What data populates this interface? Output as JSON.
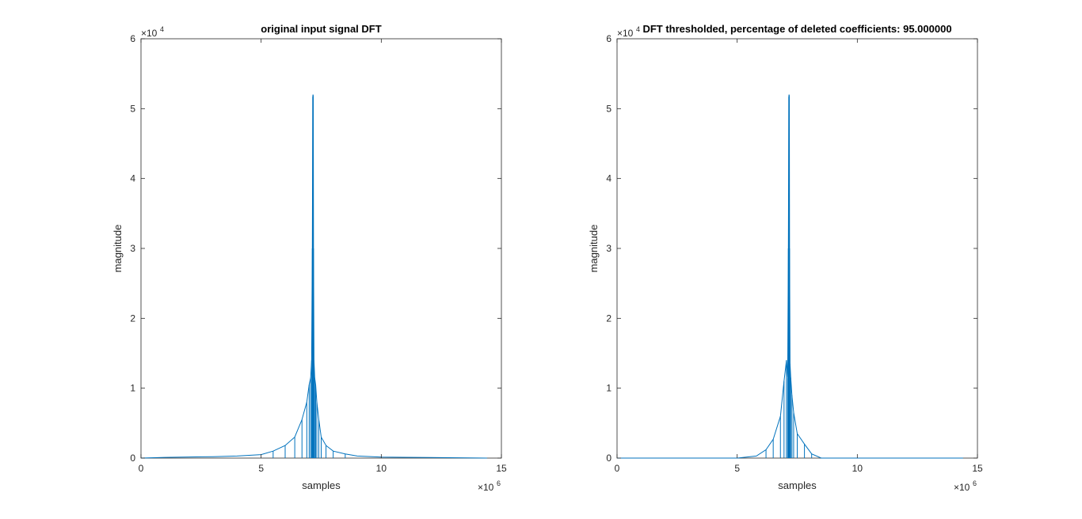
{
  "chart_data": [
    {
      "type": "line",
      "title": "original input signal DFT",
      "xlabel": "samples",
      "ylabel": "magnitude",
      "xlim": [
        0,
        15000000
      ],
      "ylim": [
        0,
        60000
      ],
      "xticks": [
        "0",
        "5",
        "10",
        "15"
      ],
      "yticks": [
        "0",
        "1",
        "2",
        "3",
        "4",
        "5",
        "6"
      ],
      "x_multiplier": "×10",
      "x_exponent": "6",
      "y_multiplier": "×10",
      "y_exponent": "4",
      "grid": false,
      "line_color": "#0072bd",
      "series": [
        {
          "x": [
            0,
            1000000,
            3000000,
            4000000,
            5000000,
            5500000,
            6000000,
            6400000,
            6700000,
            6900000,
            7000000,
            7060000,
            7100000,
            7130000,
            7150000,
            7160000,
            7170000,
            7180000,
            7200000,
            7230000,
            7270000,
            7320000,
            7400000,
            7500000,
            7700000,
            8000000,
            8500000,
            9000000,
            10000000,
            12000000,
            14400000
          ],
          "values": [
            0,
            100,
            200,
            300,
            500,
            1000,
            1800,
            3000,
            5500,
            8000,
            10500,
            11500,
            14000,
            30000,
            51700,
            52000,
            51700,
            30000,
            14000,
            11500,
            10500,
            8000,
            5500,
            3000,
            1800,
            1000,
            600,
            300,
            150,
            80,
            0
          ]
        }
      ]
    },
    {
      "type": "line",
      "title": "DFT thresholded, percentage of deleted coefficients: 95.000000",
      "xlabel": "samples",
      "ylabel": "magnitude",
      "xlim": [
        0,
        15000000
      ],
      "ylim": [
        0,
        60000
      ],
      "xticks": [
        "0",
        "5",
        "10",
        "15"
      ],
      "yticks": [
        "0",
        "1",
        "2",
        "3",
        "4",
        "5",
        "6"
      ],
      "x_multiplier": "×10",
      "x_exponent": "6",
      "y_multiplier": "×10",
      "y_exponent": "4",
      "grid": false,
      "line_color": "#0072bd",
      "series": [
        {
          "x": [
            0,
            5000000,
            5800000,
            6200000,
            6500000,
            6800000,
            6950000,
            7050000,
            7100000,
            7130000,
            7150000,
            7160000,
            7170000,
            7180000,
            7200000,
            7230000,
            7280000,
            7350000,
            7500000,
            7800000,
            8100000,
            8500000,
            14400000
          ],
          "values": [
            0,
            0,
            300,
            1200,
            2700,
            6000,
            11000,
            14000,
            11500,
            30000,
            51700,
            52000,
            51700,
            30000,
            13500,
            11500,
            9000,
            6500,
            3500,
            2000,
            600,
            0,
            0
          ]
        }
      ]
    }
  ]
}
